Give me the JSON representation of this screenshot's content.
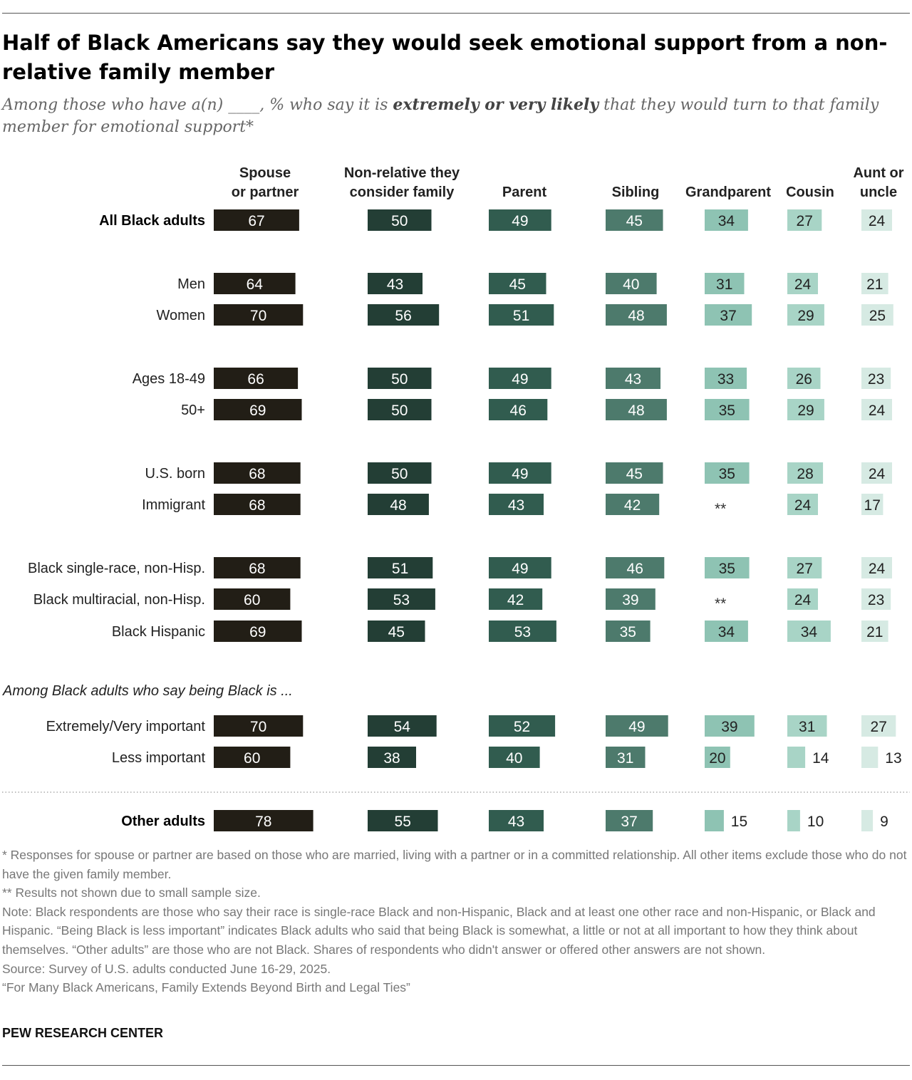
{
  "title": "Half of Black Americans say they would seek emotional support from a non-relative family member",
  "subtitle": {
    "part1": "Among those who have a(n) ____, % who say it is ",
    "bold": "extremely or very likely",
    "part2": " that they would turn to that family member for emotional support*"
  },
  "chart_data": {
    "type": "bar",
    "categories": [
      [
        "Spouse",
        "or partner"
      ],
      [
        "Non-relative they",
        "consider family"
      ],
      [
        "Parent"
      ],
      [
        "Sibling"
      ],
      [
        "Grandparent"
      ],
      [
        "Cousin"
      ],
      [
        "Aunt or",
        "uncle"
      ]
    ],
    "colors": [
      "#221e16",
      "#233e35",
      "#315c4f",
      "#4d7a6c",
      "#8ec3b3",
      "#a8d4c6",
      "#d6eae3"
    ],
    "label_colors": [
      "#ffffff",
      "#ffffff",
      "#ffffff",
      "#ffffff",
      "#222222",
      "#222222",
      "#222222"
    ],
    "group_label": "Among Black adults who say being Black is ...",
    "suppressed_marker": "**",
    "rows": [
      {
        "label": "All Black adults",
        "bold": true,
        "values": [
          67,
          50,
          49,
          45,
          34,
          27,
          24
        ]
      },
      {
        "label": "Men",
        "values": [
          64,
          43,
          45,
          40,
          31,
          24,
          21
        ]
      },
      {
        "label": "Women",
        "values": [
          70,
          56,
          51,
          48,
          37,
          29,
          25
        ]
      },
      {
        "label": "Ages 18-49",
        "values": [
          66,
          50,
          49,
          43,
          33,
          26,
          23
        ]
      },
      {
        "label": "50+",
        "values": [
          69,
          50,
          46,
          48,
          35,
          29,
          24
        ]
      },
      {
        "label": "U.S. born",
        "values": [
          68,
          50,
          49,
          45,
          35,
          28,
          24
        ]
      },
      {
        "label": "Immigrant",
        "values": [
          68,
          48,
          43,
          42,
          null,
          24,
          17
        ]
      },
      {
        "label": "Black single-race, non-Hisp.",
        "values": [
          68,
          51,
          49,
          46,
          35,
          27,
          24
        ]
      },
      {
        "label": "Black multiracial, non-Hisp.",
        "values": [
          60,
          53,
          42,
          39,
          null,
          24,
          23
        ]
      },
      {
        "label": "Black Hispanic",
        "values": [
          69,
          45,
          53,
          35,
          34,
          34,
          21
        ]
      },
      {
        "label": "Extremely/Very important",
        "values": [
          70,
          54,
          52,
          49,
          39,
          31,
          27
        ]
      },
      {
        "label": "Less important",
        "values": [
          60,
          38,
          40,
          31,
          20,
          14,
          13
        ]
      },
      {
        "label": "Other adults",
        "bold": true,
        "values": [
          78,
          55,
          43,
          37,
          15,
          10,
          9
        ]
      }
    ]
  },
  "notes": [
    "* Responses for spouse or partner are based on those who are married, living with a partner or in a committed relationship. All other items exclude those who do not have the given family member.",
    "** Results not shown due to small sample size.",
    "Note: Black respondents are those who say their race is single-race Black and non-Hispanic, Black and at least one other race and non-Hispanic, or Black and Hispanic. “Being Black is less important” indicates Black adults who said that being Black is somewhat, a little or not at all important to how they think about themselves. “Other adults” are those who are not Black. Shares of respondents who didn't answer or offered other answers are not shown.",
    "Source: Survey of U.S. adults conducted June 16-29, 2025.",
    "“For Many Black Americans, Family Extends Beyond Birth and Legal Ties”"
  ],
  "brand": "PEW RESEARCH CENTER"
}
